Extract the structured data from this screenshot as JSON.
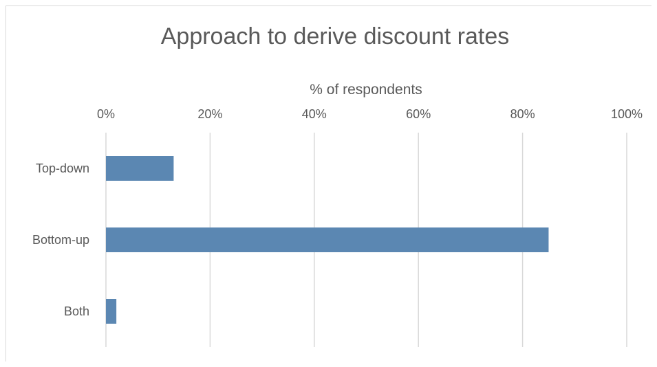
{
  "chart_data": {
    "type": "bar",
    "orientation": "horizontal",
    "title": "Approach to derive discount rates",
    "xlabel": "% of respondents",
    "ylabel": "",
    "xlim": [
      0,
      100
    ],
    "x_ticks": [
      "0%",
      "20%",
      "40%",
      "60%",
      "80%",
      "100%"
    ],
    "x_axis_position": "top",
    "grid": true,
    "categories": [
      "Top-down",
      "Bottom-up",
      "Both"
    ],
    "values": [
      13,
      85,
      2
    ],
    "bar_color": "#5b87b2"
  }
}
